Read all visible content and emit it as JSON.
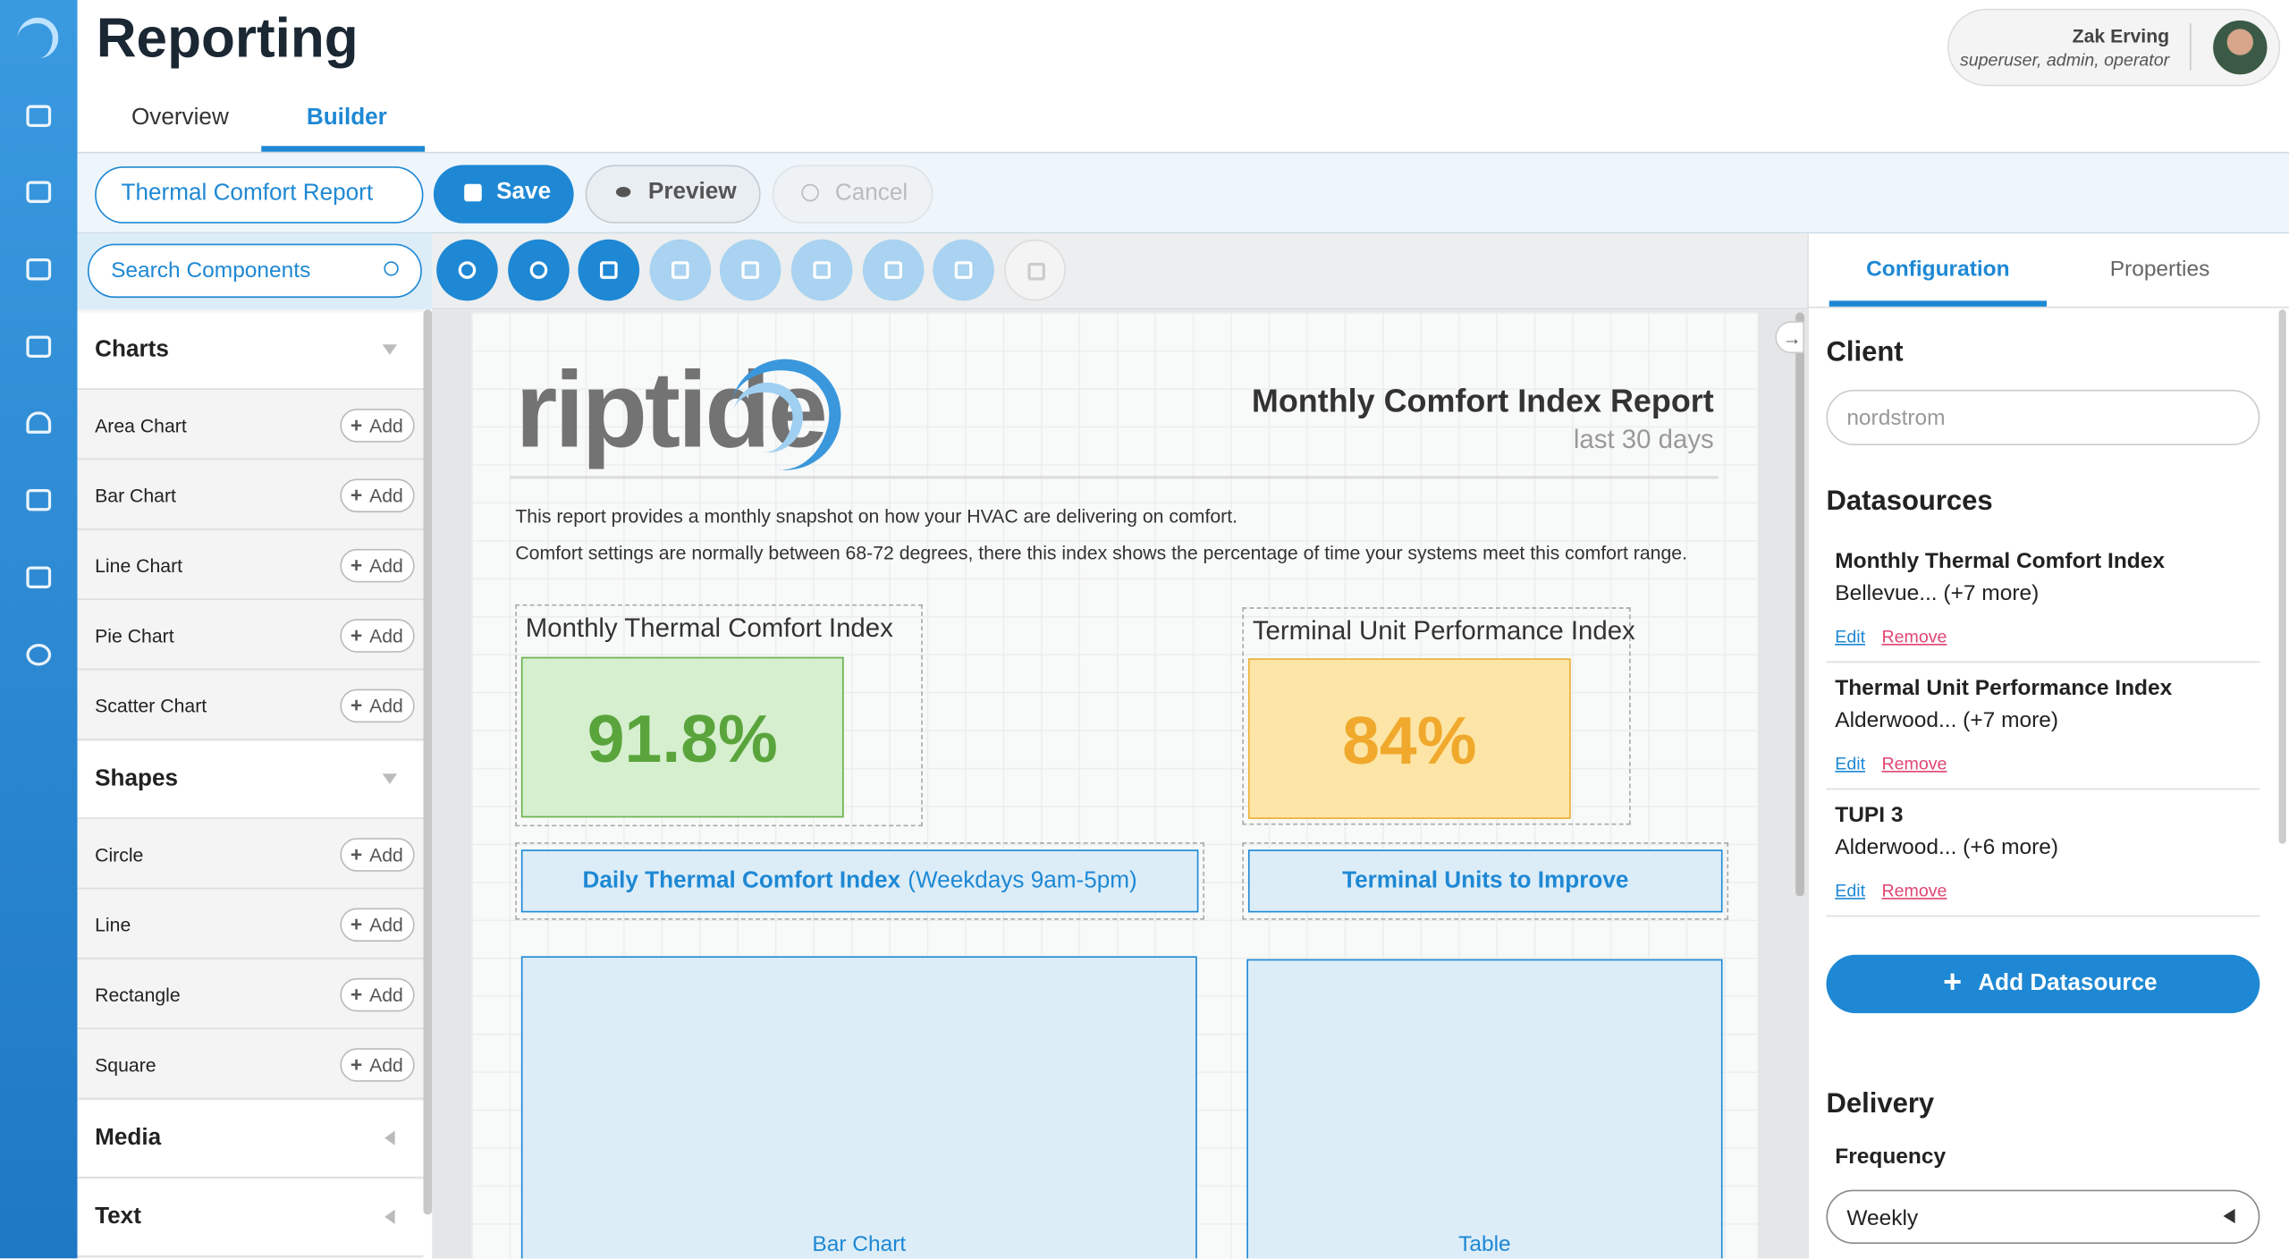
{
  "header": {
    "title": "Reporting",
    "tabs": [
      "Overview",
      "Builder"
    ]
  },
  "user": {
    "name": "Zak Erving",
    "roles": "superuser, admin, operator"
  },
  "toolbar": {
    "report_name": "Thermal Comfort Report",
    "save": "Save",
    "preview": "Preview",
    "cancel": "Cancel"
  },
  "sidebar": {
    "search_placeholder": "Search Components",
    "add_label": "Add",
    "sections": [
      {
        "title": "Charts",
        "items": [
          "Area Chart",
          "Bar Chart",
          "Line Chart",
          "Pie Chart",
          "Scatter Chart"
        ]
      },
      {
        "title": "Shapes",
        "items": [
          "Circle",
          "Line",
          "Rectangle",
          "Square"
        ]
      },
      {
        "title": "Media",
        "items": []
      },
      {
        "title": "Text",
        "items": []
      }
    ]
  },
  "canvas": {
    "logo": "riptide",
    "title": "Monthly Comfort Index Report",
    "subtitle": "last 30 days",
    "description": [
      "This report provides a monthly snapshot on how your HVAC are delivering on comfort.",
      "Comfort settings are normally between 68-72 degrees, there this index shows the percentage of time your systems meet this comfort range."
    ],
    "widgets": [
      {
        "title": "Monthly Thermal Comfort Index",
        "value": "91.8%"
      },
      {
        "title": "Terminal Unit Performance Index",
        "value": "84%"
      }
    ],
    "sections": [
      {
        "title": "Daily Thermal Comfort Index",
        "note": "(Weekdays 9am-5pm)",
        "placeholder": "Bar Chart"
      },
      {
        "title": "Terminal Units to Improve",
        "placeholder": "Table"
      }
    ]
  },
  "panel": {
    "tabs": [
      "Configuration",
      "Properties"
    ],
    "client_label": "Client",
    "client_value": "nordstrom",
    "datasources_label": "Datasources",
    "datasources": [
      {
        "name": "Monthly Thermal Comfort Index",
        "locations": "Bellevue... (+7 more)"
      },
      {
        "name": "Thermal Unit Performance Index",
        "locations": "Alderwood... (+7 more)"
      },
      {
        "name": "TUPI 3",
        "locations": "Alderwood... (+6 more)"
      }
    ],
    "edit": "Edit",
    "remove": "Remove",
    "add_datasource": "Add Datasource",
    "delivery_label": "Delivery",
    "frequency_label": "Frequency",
    "frequency": "Weekly"
  }
}
